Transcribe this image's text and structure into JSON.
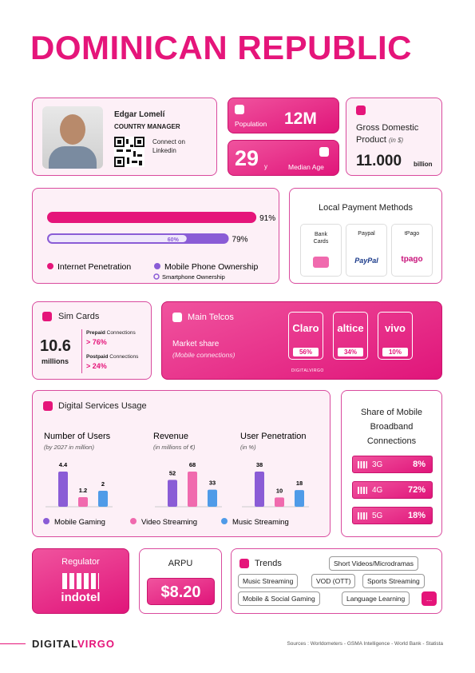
{
  "title": "DOMINICAN REPUBLIC",
  "manager": {
    "name": "Edgar Lomelí",
    "role": "COUNTRY MANAGER",
    "connect": "Connect on Linkedin"
  },
  "population": {
    "label": "Population",
    "value": "12M"
  },
  "median_age": {
    "value": "29",
    "unit": "y",
    "label": "Median Age"
  },
  "gdp": {
    "label": "Gross Domestic Product",
    "note": "(in $)",
    "value": "11.000",
    "unit": "billion"
  },
  "penetration": {
    "bars": [
      {
        "name": "Internet Penetration",
        "value": 91,
        "value_label": "91%",
        "color": "#e5157a"
      },
      {
        "name": "Mobile Phone Ownership",
        "value": 79,
        "value_label": "79%",
        "color": "#8a5cd6"
      }
    ],
    "smartphone": {
      "name": "Smartphone Ownership",
      "value": 60,
      "value_label": "60%"
    }
  },
  "payments": {
    "title": "Local Payment Methods",
    "methods": [
      "Bank Cards",
      "Paypal",
      "tPago"
    ],
    "logos": [
      "PayPal",
      "tpago"
    ]
  },
  "sim": {
    "title": "Sim Cards",
    "value": "10.6",
    "unit": "millions",
    "prepaid": {
      "label": "Prepaid",
      "suffix": "Connections",
      "value": "76%"
    },
    "postpaid": {
      "label": "Postpaid",
      "suffix": "Connections",
      "value": "24%"
    }
  },
  "telcos": {
    "title": "Main Telcos",
    "subtitle": "Market share",
    "note": "(Mobile connections)",
    "watermark": "DIGITALVIRGO",
    "operators": [
      {
        "name": "Claro",
        "share": "56%"
      },
      {
        "name": "altice",
        "share": "34%"
      },
      {
        "name": "vivo",
        "share": "10%"
      }
    ]
  },
  "digital_services": {
    "title": "Digital Services Usage",
    "series": [
      {
        "name": "Mobile Gaming",
        "color": "#8a5cd6"
      },
      {
        "name": "Video Streaming",
        "color": "#f06aae"
      },
      {
        "name": "Music Streaming",
        "color": "#4f9be8"
      }
    ],
    "charts": [
      {
        "title": "Number of Users",
        "subtitle": "(by 2027 in million)",
        "values": [
          4.4,
          1.2,
          2
        ]
      },
      {
        "title": "Revenue",
        "subtitle": "(in millions of €)",
        "values": [
          52,
          68,
          33
        ]
      },
      {
        "title": "User Penetration",
        "subtitle": "(in %)",
        "values": [
          38,
          10,
          18
        ]
      }
    ]
  },
  "broadband": {
    "title": "Share of Mobile Broadband Connections",
    "rows": [
      {
        "name": "3G",
        "share": "8%"
      },
      {
        "name": "4G",
        "share": "72%"
      },
      {
        "name": "5G",
        "share": "18%"
      }
    ]
  },
  "regulator": {
    "title": "Regulator",
    "name": "indotel"
  },
  "arpu": {
    "title": "ARPU",
    "value": "$8.20"
  },
  "trends": {
    "title": "Trends",
    "items": [
      "Short Videos/Microdramas",
      "Music Streaming",
      "VOD (OTT)",
      "Sports Streaming",
      "Mobile & Social Gaming",
      "Language Learning",
      "..."
    ]
  },
  "footer": {
    "brand_a": "DIGITAL",
    "brand_b": "VIRGO",
    "sources": "Sources : Worldometers - GSMA Intelligence - World Bank - Statista"
  }
}
